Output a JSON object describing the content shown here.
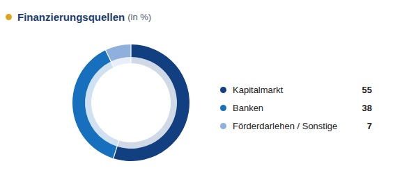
{
  "chart_data": {
    "type": "pie",
    "title": "Finanzierungsquellen",
    "subtitle": "(in %)",
    "categories": [
      "Kapitalmarkt",
      "Banken",
      "Förderdarlehen / Sonstige"
    ],
    "values": [
      55,
      38,
      7
    ],
    "colors": [
      "#123f80",
      "#1670bd",
      "#8fb0dd"
    ],
    "legend": "right",
    "data_labels": true
  }
}
